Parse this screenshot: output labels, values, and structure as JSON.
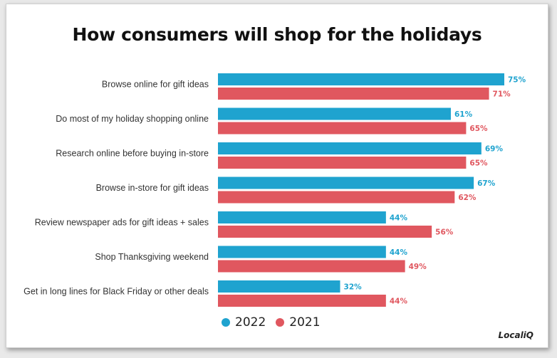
{
  "chart_data": {
    "type": "bar",
    "orientation": "horizontal",
    "title": "How consumers will shop for the holidays",
    "categories": [
      "Browse online for gift ideas",
      "Do most of my holiday shopping online",
      "Research online before buying in-store",
      "Browse in-store for gift ideas",
      "Review newspaper ads for gift ideas + sales",
      "Shop Thanksgiving weekend",
      "Get in long lines for Black Friday or other deals"
    ],
    "series": [
      {
        "name": "2022",
        "color": "#1fa3cf",
        "values": [
          75,
          61,
          69,
          67,
          44,
          44,
          32
        ]
      },
      {
        "name": "2021",
        "color": "#e0575f",
        "values": [
          71,
          65,
          65,
          62,
          56,
          49,
          44
        ]
      }
    ],
    "value_suffix": "%",
    "legend_position": "bottom",
    "grid": false
  },
  "brand": "LocaliQ"
}
